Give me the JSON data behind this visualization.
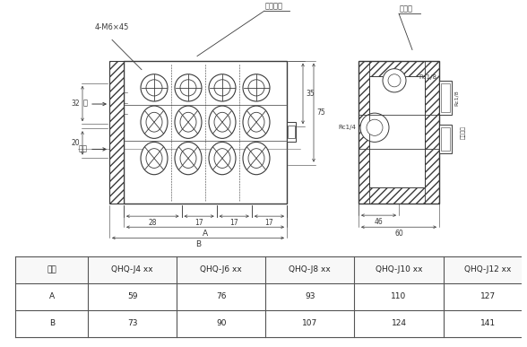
{
  "bg_color": "#ffffff",
  "line_color": "#3a3a3a",
  "dim_color": "#3a3a3a",
  "table": {
    "headers": [
      "型号",
      "QHQ-J4 xx",
      "QHQ-J6 xx",
      "QHQ-J8 xx",
      "QHQ-J10 xx",
      "QHQ-J12 xx"
    ],
    "rows": [
      [
        "A",
        "59",
        "76",
        "93",
        "110",
        "127"
      ],
      [
        "B",
        "73",
        "90",
        "107",
        "124",
        "141"
      ]
    ]
  },
  "labels": {
    "mixer": "混合器体",
    "distributor": "分配器",
    "bolt": "4-M6×45",
    "oil": "油",
    "air": "空气",
    "rc18_top": "Rc1/8",
    "rc14": "Rc1/4",
    "rc18_right": "Rc1/8",
    "oil_air_out": "油气出口",
    "dim_35": "35",
    "dim_75": "75",
    "dim_32": "32",
    "dim_20": "20",
    "dim_28": "28",
    "dim_17": "17",
    "dim_A": "A",
    "dim_B": "B",
    "dim_46": "46",
    "dim_60": "60"
  }
}
